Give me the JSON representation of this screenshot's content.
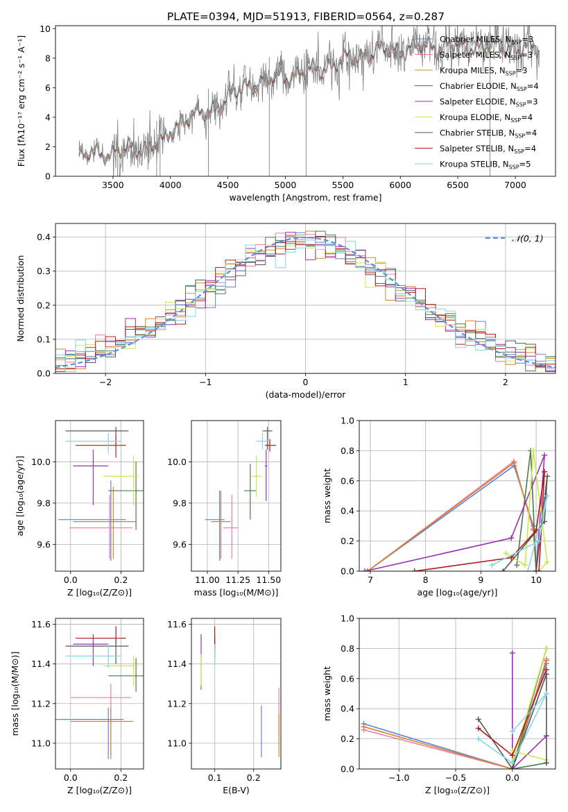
{
  "figure_title": "PLATE=0394, MJD=51913, FIBERID=0564, z=0.287",
  "series": [
    {
      "name": "Chabrier MILES",
      "legend": "Chabrier MILES, N",
      "n": "=3",
      "color": "#5b84d6"
    },
    {
      "name": "Salpeter MILES",
      "legend": "Salpeter MILES, N",
      "n": "=3",
      "color": "#e87fa8"
    },
    {
      "name": "Kroupa MILES",
      "legend": "Kroupa MILES, N",
      "n": "=3",
      "color": "#d9822b"
    },
    {
      "name": "Chabrier ELODIE",
      "legend": "Chabrier ELODIE, N",
      "n": "=4",
      "color": "#4a7a4a"
    },
    {
      "name": "Salpeter ELODIE",
      "legend": "Salpeter ELODIE, N",
      "n": "=3",
      "color": "#9a2fb5"
    },
    {
      "name": "Kroupa ELODIE",
      "legend": "Kroupa ELODIE, N",
      "n": "=4",
      "color": "#cde64e"
    },
    {
      "name": "Chabrier STELIB",
      "legend": "Chabrier STELIB, N",
      "n": "=4",
      "color": "#555555"
    },
    {
      "name": "Salpeter STELIB",
      "legend": "Salpeter STELIB, N",
      "n": "=4",
      "color": "#b01a1a"
    },
    {
      "name": "Kroupa STELIB",
      "legend": "Kroupa STELIB, N",
      "n": "=5",
      "color": "#86d6e6"
    }
  ],
  "nssp_sub": "SSP",
  "chart_data": [
    {
      "id": "spectrum",
      "type": "line",
      "xlabel": "wavelength [Angstrom, rest frame]",
      "ylabel": "Flux [fλ10⁻¹⁷ erg cm⁻² s⁻¹ A⁻¹]",
      "xlim": [
        3000,
        7350
      ],
      "ylim": [
        0,
        10.2
      ],
      "xticks": [
        3500,
        4000,
        4500,
        5000,
        5500,
        6000,
        6500,
        7000
      ],
      "yticks": [
        0,
        2,
        4,
        6,
        8,
        10
      ],
      "continuum": [
        [
          3200,
          1.2
        ],
        [
          3300,
          1.55
        ],
        [
          3500,
          1.6
        ],
        [
          3600,
          1.8
        ],
        [
          3800,
          2.0
        ],
        [
          3900,
          2.3
        ],
        [
          3950,
          2.2
        ],
        [
          4000,
          3.0
        ],
        [
          4100,
          3.8
        ],
        [
          4300,
          4.3
        ],
        [
          4500,
          5.3
        ],
        [
          4700,
          6.3
        ],
        [
          5000,
          6.8
        ],
        [
          5200,
          7.1
        ],
        [
          5400,
          7.5
        ],
        [
          5600,
          8.1
        ],
        [
          5800,
          8.5
        ],
        [
          6000,
          8.6
        ],
        [
          6200,
          8.8
        ],
        [
          6500,
          8.9
        ],
        [
          6800,
          8.8
        ],
        [
          7000,
          8.7
        ],
        [
          7200,
          8.6
        ]
      ]
    },
    {
      "id": "residuals",
      "type": "histogram",
      "xlabel": "(data-model)/error",
      "ylabel": "Normed distribution",
      "xlim": [
        -2.5,
        2.5
      ],
      "ylim": [
        0,
        0.44
      ],
      "xticks": [
        -2,
        -1,
        0,
        1,
        2
      ],
      "yticks": [
        0.0,
        0.1,
        0.2,
        0.3,
        0.4
      ],
      "bin_width": 0.1,
      "reference_label": "𝒩(0, 1)",
      "reference_color": "#5b8fd9"
    },
    {
      "id": "age_vs_Z",
      "type": "errorbar",
      "xlabel": "Z [log₁₀(Z/Z⊙)]",
      "ylabel": "age  [log₁₀(age/yr)]",
      "xlim": [
        -0.06,
        0.29
      ],
      "ylim": [
        9.47,
        10.2
      ],
      "xticks": [
        0.0,
        0.2
      ],
      "yticks": [
        9.6,
        9.8,
        10.0
      ],
      "points": [
        {
          "x": 0.16,
          "y": 9.72,
          "xerr": [
            0.21,
            0.06
          ],
          "yerr": [
            0.2,
            0.19
          ]
        },
        {
          "x": 0.155,
          "y": 9.68,
          "xerr": [
            0.16,
            0.09
          ],
          "yerr": [
            0.15,
            0.16
          ]
        },
        {
          "x": 0.17,
          "y": 9.71,
          "xerr": [
            0.16,
            0.09
          ],
          "yerr": [
            0.18,
            0.17
          ]
        },
        {
          "x": 0.26,
          "y": 9.86,
          "xerr": [
            0.11,
            0.03
          ],
          "yerr": [
            0.19,
            0.14
          ]
        },
        {
          "x": 0.09,
          "y": 9.98,
          "xerr": [
            0.08,
            0.06
          ],
          "yerr": [
            0.19,
            0.08
          ]
        },
        {
          "x": 0.25,
          "y": 9.93,
          "xerr": [
            0.12,
            0.02
          ],
          "yerr": [
            0.14,
            0.1
          ]
        },
        {
          "x": 0.18,
          "y": 10.15,
          "xerr": [
            0.2,
            0.05
          ],
          "yerr": [
            0.07,
            0.02
          ]
        },
        {
          "x": 0.18,
          "y": 10.08,
          "xerr": [
            0.16,
            0.04
          ],
          "yerr": [
            0.06,
            0.05
          ]
        },
        {
          "x": 0.15,
          "y": 10.1,
          "xerr": [
            0.17,
            0.05
          ],
          "yerr": [
            0.06,
            0.04
          ]
        }
      ]
    },
    {
      "id": "age_vs_mass",
      "type": "errorbar",
      "xlabel": "mass [log₁₀(M/M⊙)]",
      "ylabel": "",
      "xlim": [
        10.87,
        11.6
      ],
      "ylim": [
        9.47,
        10.2
      ],
      "xticks": [
        11.0,
        11.25,
        11.5
      ],
      "yticks": [
        9.6,
        9.8,
        10.0
      ],
      "points": [
        {
          "x": 11.1,
          "y": 9.72,
          "xerr": [
            0.12,
            0.04
          ],
          "yerr": [
            0.2,
            0.14
          ]
        },
        {
          "x": 11.2,
          "y": 9.68,
          "xerr": [
            0.07,
            0.05
          ],
          "yerr": [
            0.15,
            0.16
          ]
        },
        {
          "x": 11.11,
          "y": 9.71,
          "xerr": [
            0.08,
            0.08
          ],
          "yerr": [
            0.18,
            0.15
          ]
        },
        {
          "x": 11.35,
          "y": 9.86,
          "xerr": [
            0.05,
            0.05
          ],
          "yerr": [
            0.14,
            0.13
          ]
        },
        {
          "x": 11.48,
          "y": 9.98,
          "xerr": [
            0.01,
            0.01
          ],
          "yerr": [
            0.17,
            0.08
          ]
        },
        {
          "x": 11.4,
          "y": 9.93,
          "xerr": [
            0.04,
            0.04
          ],
          "yerr": [
            0.1,
            0.1
          ]
        },
        {
          "x": 11.49,
          "y": 10.15,
          "xerr": [
            0.04,
            0.04
          ],
          "yerr": [
            0.09,
            0.02
          ]
        },
        {
          "x": 11.51,
          "y": 10.08,
          "xerr": [
            0.04,
            0.05
          ],
          "yerr": [
            0.03,
            0.03
          ]
        },
        {
          "x": 11.45,
          "y": 10.1,
          "xerr": [
            0.05,
            0.05
          ],
          "yerr": [
            0.04,
            0.04
          ]
        }
      ]
    },
    {
      "id": "weight_vs_age",
      "type": "line",
      "xlabel": "age  [log₁₀(age/yr)]",
      "ylabel": "mass weight",
      "xlim": [
        6.8,
        10.35
      ],
      "ylim": [
        0,
        1
      ],
      "xticks": [
        7,
        8,
        9,
        10
      ],
      "yticks": [
        0.0,
        0.2,
        0.4,
        0.6,
        0.8,
        1.0
      ],
      "lines": [
        [
          [
            6.95,
            0.0
          ],
          [
            9.6,
            0.7
          ],
          [
            9.95,
            0.3
          ],
          [
            10.0,
            0.0
          ]
        ],
        [
          [
            6.95,
            0.0
          ],
          [
            9.6,
            0.73
          ],
          [
            9.95,
            0.27
          ],
          [
            10.0,
            0.0
          ]
        ],
        [
          [
            6.95,
            0.0
          ],
          [
            9.6,
            0.72
          ],
          [
            9.95,
            0.28
          ],
          [
            10.0,
            0.0
          ]
        ],
        [
          [
            9.65,
            0.04
          ],
          [
            9.9,
            0.8
          ],
          [
            10.0,
            0.0
          ]
        ],
        [
          [
            6.9,
            0.0
          ],
          [
            9.55,
            0.22
          ],
          [
            10.15,
            0.77
          ],
          [
            10.0,
            0.0
          ]
        ],
        [
          [
            9.45,
            0.12
          ],
          [
            9.8,
            0.04
          ],
          [
            9.95,
            0.8
          ],
          [
            10.2,
            0.06
          ],
          [
            10.05,
            0.0
          ]
        ],
        [
          [
            9.4,
            0.0
          ],
          [
            10.15,
            0.33
          ],
          [
            10.2,
            0.63
          ],
          [
            10.0,
            0.0
          ]
        ],
        [
          [
            7.8,
            0.0
          ],
          [
            9.55,
            0.09
          ],
          [
            10.0,
            0.27
          ],
          [
            10.15,
            0.66
          ],
          [
            10.05,
            0.0
          ]
        ],
        [
          [
            9.2,
            0.04
          ],
          [
            10.05,
            0.2
          ],
          [
            10.2,
            0.5
          ],
          [
            9.85,
            0.0
          ]
        ]
      ]
    },
    {
      "id": "mass_vs_Z",
      "type": "errorbar",
      "xlabel": "Z [log₁₀(Z/Z⊙)]",
      "ylabel": "mass [log₁₀(M/M⊙)]",
      "xlim": [
        -0.06,
        0.29
      ],
      "ylim": [
        10.87,
        11.63
      ],
      "xticks": [
        0.0,
        0.2
      ],
      "yticks": [
        11.0,
        11.2,
        11.4,
        11.6
      ],
      "points": [
        {
          "x": 0.15,
          "y": 11.12,
          "xerr": [
            0.21,
            0.06
          ],
          "yerr": [
            0.2,
            0.06
          ]
        },
        {
          "x": 0.16,
          "y": 11.23,
          "xerr": [
            0.16,
            0.08
          ],
          "yerr": [
            0.29,
            0.07
          ]
        },
        {
          "x": 0.16,
          "y": 11.11,
          "xerr": [
            0.16,
            0.09
          ],
          "yerr": [
            0.19,
            0.07
          ]
        },
        {
          "x": 0.26,
          "y": 11.34,
          "xerr": [
            0.11,
            0.03
          ],
          "yerr": [
            0.08,
            0.09
          ]
        },
        {
          "x": 0.09,
          "y": 11.5,
          "xerr": [
            0.08,
            0.06
          ],
          "yerr": [
            0.11,
            0.05
          ]
        },
        {
          "x": 0.25,
          "y": 11.39,
          "xerr": [
            0.12,
            0.02
          ],
          "yerr": [
            0.1,
            0.05
          ]
        },
        {
          "x": 0.18,
          "y": 11.49,
          "xerr": [
            0.2,
            0.05
          ],
          "yerr": [
            0.09,
            0.1
          ]
        },
        {
          "x": 0.18,
          "y": 11.53,
          "xerr": [
            0.16,
            0.04
          ],
          "yerr": [
            0.03,
            0.06
          ]
        },
        {
          "x": 0.15,
          "y": 11.44,
          "xerr": [
            0.17,
            0.05
          ],
          "yerr": [
            0.06,
            0.06
          ]
        }
      ]
    },
    {
      "id": "mass_vs_ebv",
      "type": "errorbar",
      "xlabel": "E(B-V)",
      "ylabel": "",
      "xlim": [
        0.04,
        0.27
      ],
      "ylim": [
        10.87,
        11.63
      ],
      "xticks": [
        0.1,
        0.2
      ],
      "yticks": [
        11.0,
        11.2,
        11.4,
        11.6
      ],
      "points": [
        {
          "x": 0.22,
          "y": 11.05,
          "xerr": [
            0,
            0
          ],
          "yerr": [
            0.12,
            0.14
          ]
        },
        {
          "x": 0.265,
          "y": 11.18,
          "xerr": [
            0,
            0
          ],
          "yerr": [
            0.14,
            0.1
          ]
        },
        {
          "x": 0.265,
          "y": 11.05,
          "xerr": [
            0,
            0
          ],
          "yerr": [
            0.12,
            0.1
          ]
        },
        {
          "x": 0.065,
          "y": 11.35,
          "xerr": [
            0,
            0
          ],
          "yerr": [
            0.08,
            0.09
          ]
        },
        {
          "x": 0.065,
          "y": 11.48,
          "xerr": [
            0,
            0
          ],
          "yerr": [
            0.05,
            0.07
          ]
        },
        {
          "x": 0.065,
          "y": 11.38,
          "xerr": [
            0,
            0
          ],
          "yerr": [
            0.09,
            0.07
          ]
        },
        {
          "x": 0.1,
          "y": 11.48,
          "xerr": [
            0,
            0
          ],
          "yerr": [
            0.05,
            0.05
          ]
        },
        {
          "x": 0.1,
          "y": 11.52,
          "xerr": [
            0,
            0
          ],
          "yerr": [
            0.05,
            0.07
          ]
        },
        {
          "x": 0.1,
          "y": 11.45,
          "xerr": [
            0,
            0
          ],
          "yerr": [
            0.05,
            0.05
          ]
        }
      ]
    },
    {
      "id": "weight_vs_Z",
      "type": "line",
      "xlabel": "Z [log₁₀(Z/Z⊙)]",
      "ylabel": "mass weight",
      "xlim": [
        -1.35,
        0.38
      ],
      "ylim": [
        0,
        1
      ],
      "xticks": [
        -1.0,
        -0.5,
        0.0
      ],
      "yticks": [
        0.0,
        0.2,
        0.4,
        0.6,
        0.8,
        1.0
      ],
      "lines": [
        [
          [
            -1.31,
            0.3
          ],
          [
            0.0,
            0.0
          ],
          [
            0.3,
            0.7
          ]
        ],
        [
          [
            -1.31,
            0.26
          ],
          [
            0.0,
            0.0
          ],
          [
            0.3,
            0.73
          ]
        ],
        [
          [
            -1.31,
            0.28
          ],
          [
            0.0,
            0.0
          ],
          [
            0.3,
            0.72
          ]
        ],
        [
          [
            0.3,
            0.8
          ],
          [
            0.0,
            0.0
          ],
          [
            0.3,
            0.04
          ]
        ],
        [
          [
            0.0,
            0.77
          ],
          [
            0.0,
            0.0
          ],
          [
            0.3,
            0.22
          ]
        ],
        [
          [
            0.3,
            0.8
          ],
          [
            0.0,
            0.04
          ],
          [
            0.0,
            0.12
          ],
          [
            0.3,
            0.06
          ]
        ],
        [
          [
            -0.3,
            0.33
          ],
          [
            0.0,
            0.0
          ],
          [
            0.3,
            0.63
          ],
          [
            0.3,
            0.04
          ]
        ],
        [
          [
            -0.3,
            0.27
          ],
          [
            0.0,
            0.09
          ],
          [
            0.3,
            0.66
          ]
        ],
        [
          [
            -0.3,
            0.2
          ],
          [
            0.0,
            0.04
          ],
          [
            0.3,
            0.5
          ],
          [
            0.0,
            0.25
          ]
        ]
      ]
    }
  ]
}
